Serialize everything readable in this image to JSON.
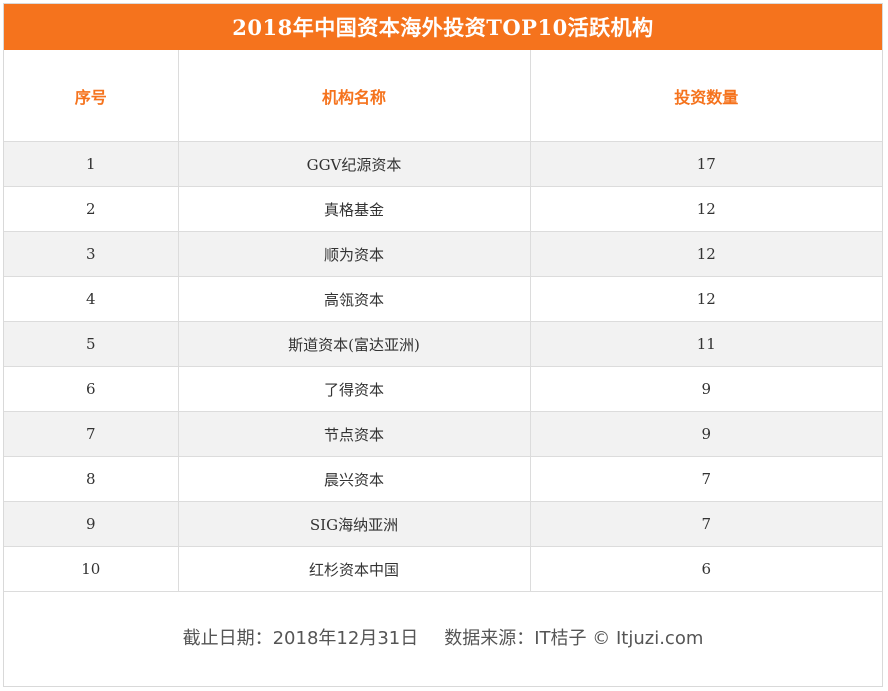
{
  "title": "2018年中国资本海外投资TOP10活跃机构",
  "columns": [
    "序号",
    "机构名称",
    "投资数量"
  ],
  "rows": [
    {
      "rank": "1",
      "name": "GGV纪源资本",
      "count": "17"
    },
    {
      "rank": "2",
      "name": "真格基金",
      "count": "12"
    },
    {
      "rank": "3",
      "name": "顺为资本",
      "count": "12"
    },
    {
      "rank": "4",
      "name": "高瓴资本",
      "count": "12"
    },
    {
      "rank": "5",
      "name": "斯道资本(富达亚洲)",
      "count": "11"
    },
    {
      "rank": "6",
      "name": "了得资本",
      "count": "9"
    },
    {
      "rank": "7",
      "name": "节点资本",
      "count": "9"
    },
    {
      "rank": "8",
      "name": "晨兴资本",
      "count": "7"
    },
    {
      "rank": "9",
      "name": "SIG海纳亚洲",
      "count": "7"
    },
    {
      "rank": "10",
      "name": "红杉资本中国",
      "count": "6"
    }
  ],
  "footer": {
    "date": "截止日期：2018年12月31日",
    "source": "数据来源：IT桔子 © Itjuzi.com"
  },
  "colors": {
    "accent": "#f5731d",
    "stripe": "#f2f2f2",
    "border": "#dcdcdc"
  }
}
